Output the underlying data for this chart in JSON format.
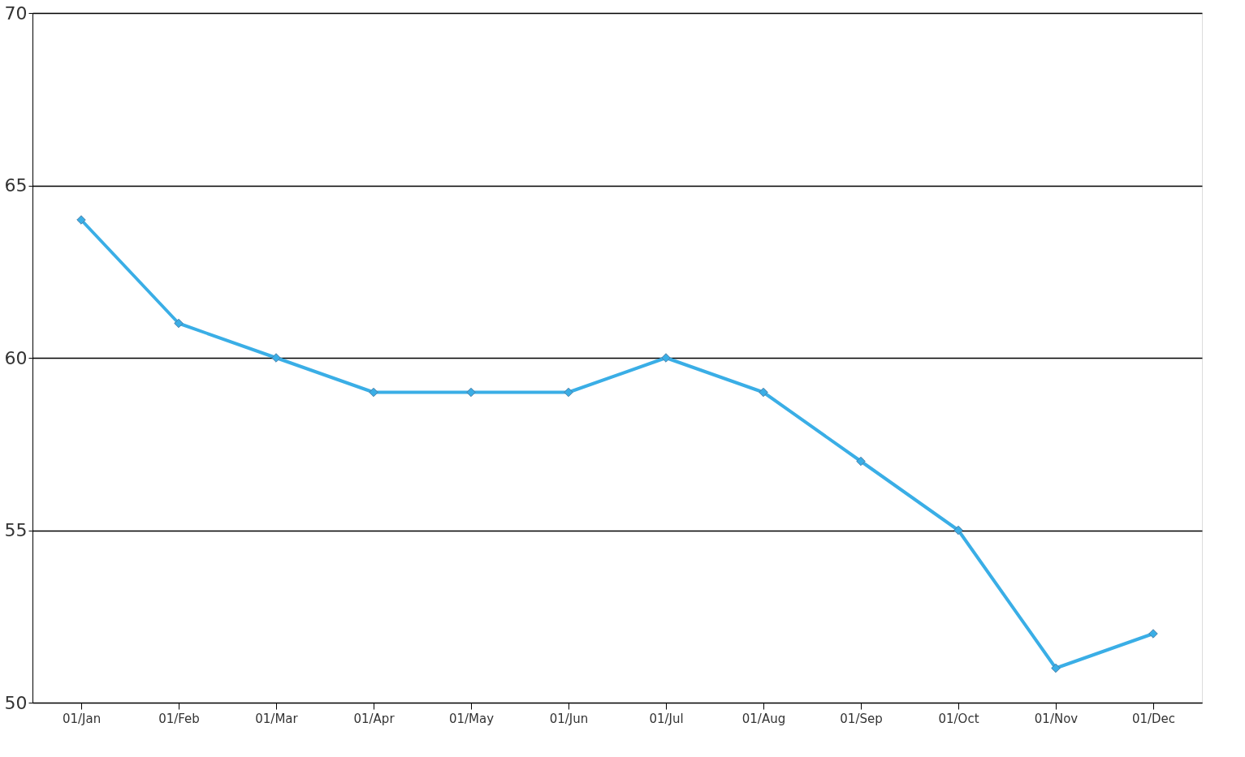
{
  "chart_data": {
    "type": "line",
    "categories": [
      "01/Jan",
      "01/Feb",
      "01/Mar",
      "01/Apr",
      "01/May",
      "01/Jun",
      "01/Jul",
      "01/Aug",
      "01/Sep",
      "01/Oct",
      "01/Nov",
      "01/Dec"
    ],
    "series": [
      {
        "color": "#3aaee6",
        "values": [
          64,
          61,
          60,
          59,
          59,
          59,
          60,
          59,
          57,
          55,
          51,
          52
        ]
      }
    ],
    "ylim": [
      50,
      70
    ],
    "yticks": [
      50,
      55,
      60,
      65,
      70
    ],
    "grid": "y",
    "marker": "diamond",
    "line_style": "solid"
  }
}
